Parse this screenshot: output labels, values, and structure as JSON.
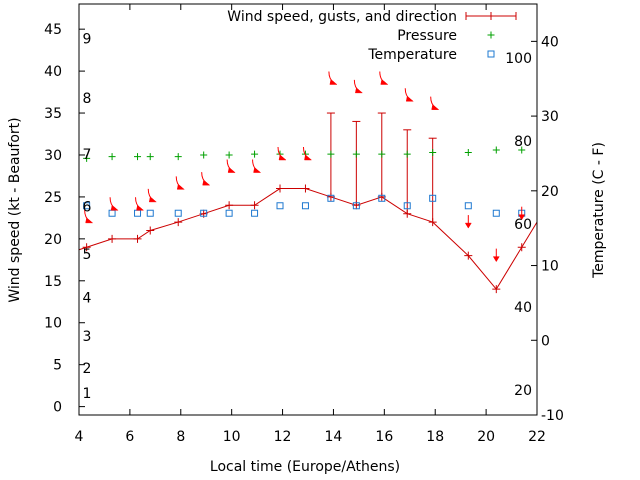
{
  "chart_data": {
    "type": "line",
    "xlabel": "Local time (Europe/Athens)",
    "ylabel_left": "Wind speed (kt - Beaufort)",
    "ylabel_right": "Temperature (C - F)",
    "x_ticks": [
      "4",
      "6",
      "8",
      "10",
      "12",
      "14",
      "16",
      "18",
      "20",
      "22"
    ],
    "xlim": [
      4,
      22
    ],
    "left_ticks": [
      "0",
      "5",
      "10",
      "15",
      "20",
      "25",
      "30",
      "35",
      "40",
      "45"
    ],
    "ylim_left": [
      -1,
      48
    ],
    "right_ticks_c": [
      "-10",
      "0",
      "10",
      "20",
      "30",
      "40"
    ],
    "right_ticks_f": [
      "20",
      "40",
      "60",
      "80",
      "100"
    ],
    "ylim_right_c": [
      -10,
      45
    ],
    "beaufort_labels": [
      "1",
      "2",
      "3",
      "4",
      "5",
      "6",
      "7",
      "8",
      "9"
    ],
    "legend": {
      "wind": "Wind speed, gusts, and direction",
      "pressure": "Pressure",
      "temperature": "Temperature"
    },
    "colors": {
      "wind": "#cc0000",
      "arrow": "#ff0000",
      "pressure": "#00a000",
      "temperature": "#1e78d0"
    },
    "series": [
      {
        "name": "Wind speed, gusts, and direction",
        "x": [
          4.3,
          5.3,
          6.3,
          6.8,
          7.9,
          8.9,
          9.9,
          10.9,
          11.9,
          12.9,
          13.9,
          14.9,
          15.9,
          16.9,
          17.9,
          19.3,
          20.4,
          21.4
        ],
        "speed": [
          19,
          20,
          20,
          21,
          22,
          23,
          24,
          24,
          26,
          26,
          25,
          24,
          25,
          23,
          22,
          18,
          14,
          19
        ],
        "gust": [
          null,
          null,
          null,
          null,
          null,
          null,
          null,
          null,
          null,
          null,
          35,
          34,
          35,
          33,
          32,
          null,
          null,
          null
        ]
      },
      {
        "name": "Pressure",
        "x": [
          4.3,
          5.3,
          6.3,
          6.8,
          7.9,
          8.9,
          9.9,
          10.9,
          11.9,
          12.9,
          13.9,
          14.9,
          15.9,
          16.9,
          17.9,
          19.3,
          20.4,
          21.4
        ],
        "values": [
          29.6,
          29.8,
          29.8,
          29.8,
          29.8,
          30.0,
          30.0,
          30.1,
          30.1,
          30.1,
          30.1,
          30.1,
          30.1,
          30.1,
          30.3,
          30.3,
          30.6,
          30.6
        ]
      },
      {
        "name": "Temperature",
        "x": [
          4.3,
          5.3,
          6.3,
          6.8,
          7.9,
          8.9,
          9.9,
          10.9,
          11.9,
          12.9,
          13.9,
          14.9,
          15.9,
          16.9,
          17.9,
          19.3,
          20.4,
          21.4
        ],
        "values": [
          18.0,
          17.0,
          17.0,
          17.0,
          17.0,
          17.0,
          17.0,
          17.0,
          18.0,
          18.0,
          19.0,
          18.0,
          19.0,
          18.0,
          19.0,
          18.0,
          17.0,
          17.0
        ]
      }
    ],
    "direction_arrows": [
      {
        "x": 4.3,
        "y": 22.5,
        "dir": "se"
      },
      {
        "x": 5.3,
        "y": 24.0,
        "dir": "se"
      },
      {
        "x": 6.3,
        "y": 24.0,
        "dir": "se"
      },
      {
        "x": 6.8,
        "y": 25.0,
        "dir": "se"
      },
      {
        "x": 7.9,
        "y": 26.5,
        "dir": "se"
      },
      {
        "x": 8.9,
        "y": 27.0,
        "dir": "se"
      },
      {
        "x": 9.9,
        "y": 28.5,
        "dir": "se"
      },
      {
        "x": 10.9,
        "y": 28.5,
        "dir": "se"
      },
      {
        "x": 11.9,
        "y": 30.0,
        "dir": "se"
      },
      {
        "x": 12.9,
        "y": 30.0,
        "dir": "se"
      },
      {
        "x": 13.9,
        "y": 39.0,
        "dir": "se"
      },
      {
        "x": 14.9,
        "y": 38.0,
        "dir": "se"
      },
      {
        "x": 15.9,
        "y": 39.0,
        "dir": "se"
      },
      {
        "x": 16.9,
        "y": 37.0,
        "dir": "se"
      },
      {
        "x": 17.9,
        "y": 36.0,
        "dir": "se"
      },
      {
        "x": 19.3,
        "y": 22.0,
        "dir": "s"
      },
      {
        "x": 20.4,
        "y": 18.0,
        "dir": "s"
      },
      {
        "x": 21.4,
        "y": 23.0,
        "dir": "s"
      }
    ]
  }
}
